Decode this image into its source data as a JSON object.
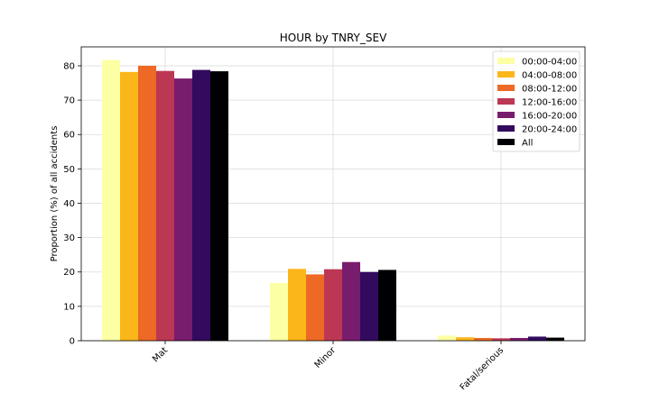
{
  "chart_data": {
    "type": "bar",
    "title": "HOUR by TNRY_SEV",
    "xlabel": "",
    "ylabel": "Proportion (%) of all accidents",
    "categories": [
      "Mat",
      "Minor",
      "Fatal/serious"
    ],
    "ylim": [
      0,
      85.5
    ],
    "yticks": [
      0,
      10,
      20,
      30,
      40,
      50,
      60,
      70,
      80
    ],
    "grid": true,
    "legend_position": "top-right",
    "series": [
      {
        "name": "00:00-04:00",
        "color": "#fcffa4",
        "values": [
          81.7,
          16.8,
          1.5
        ]
      },
      {
        "name": "04:00-08:00",
        "color": "#fbb61a",
        "values": [
          78.2,
          20.9,
          1.0
        ]
      },
      {
        "name": "08:00-12:00",
        "color": "#ed6925",
        "values": [
          80.0,
          19.3,
          0.8
        ]
      },
      {
        "name": "12:00-16:00",
        "color": "#bc3754",
        "values": [
          78.5,
          20.8,
          0.7
        ]
      },
      {
        "name": "16:00-20:00",
        "color": "#781c6d",
        "values": [
          76.3,
          22.9,
          0.8
        ]
      },
      {
        "name": "20:00-24:00",
        "color": "#320a5e",
        "values": [
          78.8,
          20.0,
          1.2
        ]
      },
      {
        "name": "All",
        "color": "#000004",
        "values": [
          78.4,
          20.6,
          0.9
        ]
      }
    ]
  }
}
